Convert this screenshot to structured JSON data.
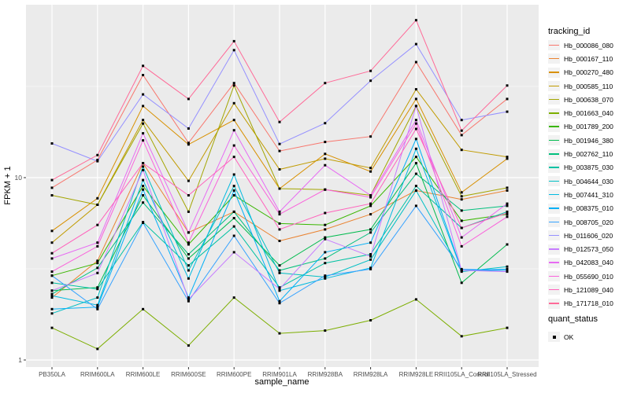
{
  "colors": {
    "panel_bg": "#EBEBEB",
    "grid": "#FFFFFF",
    "tick_mark": "#333333",
    "tick_label": "#4D4D4D",
    "axis_title": "#000000",
    "point": "#000000",
    "legend_key_bg": "#F2F2F2"
  },
  "legend": {
    "tracking_title": "tracking_id",
    "quant_title": "quant_status",
    "quant_items": [
      {
        "label": "OK",
        "point_color": "#000000"
      }
    ]
  },
  "chart_data": {
    "type": "line",
    "title": "",
    "xlabel": "sample_name",
    "ylabel": "FPKM + 1",
    "y_scale": "log10",
    "ylim": [
      0.91,
      89
    ],
    "y_ticks": [
      {
        "value": 1,
        "label": "1"
      },
      {
        "value": 10,
        "label": "10"
      }
    ],
    "y_minor_breaks": [
      3.162,
      31.62
    ],
    "grid": "on",
    "legend_position": "right",
    "point_shape": "square",
    "categories": [
      "PB350LA",
      "RRIM600LA",
      "RRIM600LE",
      "RRIM600SE",
      "RRIM600PE",
      "RRIM901LA",
      "RRIM928BA",
      "RRIM928LA",
      "RRIM928LE",
      "RRII105LA_Control",
      "RRII105LA_Stressed"
    ],
    "series": [
      {
        "name": "Hb_000086_080",
        "color": "#F8766D",
        "values": [
          8.8,
          12.5,
          36.5,
          15.5,
          33,
          14,
          15.7,
          16.8,
          43,
          17.1,
          27
        ]
      },
      {
        "name": "Hb_000167_110",
        "color": "#EA8331",
        "values": [
          2.2,
          3.5,
          12,
          5.0,
          6.5,
          4.5,
          5.2,
          6.3,
          8.5,
          7.6,
          8.5
        ]
      },
      {
        "name": "Hb_000270_480",
        "color": "#D89000",
        "values": [
          5.1,
          7.7,
          24.7,
          15.2,
          20.7,
          8.7,
          13.5,
          10.8,
          27,
          8.3,
          12.7
        ]
      },
      {
        "name": "Hb_000585_110",
        "color": "#C09B00",
        "values": [
          4.4,
          7.1,
          20.7,
          9.6,
          25.6,
          11.1,
          12.7,
          11.3,
          30.5,
          14.2,
          13
        ]
      },
      {
        "name": "Hb_000638_070",
        "color": "#A3A500",
        "values": [
          8.0,
          7.1,
          19.8,
          6.5,
          32,
          8.7,
          8.6,
          8.0,
          24.7,
          7.9,
          8.8
        ]
      },
      {
        "name": "Hb_001663_040",
        "color": "#7CAE00",
        "values": [
          1.5,
          1.15,
          1.9,
          1.2,
          2.2,
          1.4,
          1.45,
          1.65,
          2.15,
          1.35,
          1.5
        ]
      },
      {
        "name": "Hb_001789_200",
        "color": "#39B600",
        "values": [
          2.9,
          3.4,
          9.0,
          4.3,
          8.0,
          5.6,
          5.5,
          7.0,
          13,
          5.8,
          6.3
        ]
      },
      {
        "name": "Hb_001946_380",
        "color": "#00BB4E",
        "values": [
          2.4,
          2.5,
          8.0,
          3.6,
          6.0,
          3.3,
          4.7,
          5.2,
          12,
          2.65,
          4.3
        ]
      },
      {
        "name": "Hb_002762_110",
        "color": "#00BF7D",
        "values": [
          2.3,
          3.2,
          7.3,
          3.8,
          6.5,
          3.1,
          3.6,
          5.0,
          10.5,
          6.6,
          7.0
        ]
      },
      {
        "name": "Hb_003875_030",
        "color": "#00C1A3",
        "values": [
          2.65,
          2.45,
          5.7,
          3.3,
          5.4,
          2.5,
          3.4,
          3.8,
          9.0,
          5.3,
          6.5
        ]
      },
      {
        "name": "Hb_004644_030",
        "color": "#00BFC4",
        "values": [
          1.8,
          2.2,
          11.5,
          3.1,
          9.0,
          3.0,
          2.85,
          3.55,
          8.5,
          3.05,
          3.25
        ]
      },
      {
        "name": "Hb_007441_310",
        "color": "#00BAE0",
        "values": [
          2.25,
          2.0,
          9.7,
          2.8,
          10.4,
          2.4,
          2.8,
          3.2,
          14.4,
          3.1,
          3.1
        ]
      },
      {
        "name": "Hb_008375_010",
        "color": "#00B0F6",
        "values": [
          1.9,
          1.95,
          8.6,
          2.2,
          8.5,
          2.1,
          3.9,
          4.4,
          16.3,
          3.1,
          3.15
        ]
      },
      {
        "name": "Hb_008705_020",
        "color": "#35A2FF",
        "values": [
          2.9,
          1.9,
          5.65,
          2.1,
          4.8,
          2.05,
          2.9,
          3.15,
          7.0,
          3.15,
          3.1
        ]
      },
      {
        "name": "Hb_011606_020",
        "color": "#9590FF",
        "values": [
          15.4,
          12.3,
          28.6,
          18.6,
          50,
          15.3,
          19.9,
          34,
          54,
          20.7,
          23
        ]
      },
      {
        "name": "Hb_012573_050",
        "color": "#C77CFF",
        "values": [
          2.4,
          3.0,
          11.0,
          2.15,
          3.9,
          2.45,
          4.6,
          3.7,
          24.7,
          3.1,
          3.05
        ]
      },
      {
        "name": "Hb_042083_040",
        "color": "#E76BF3",
        "values": [
          3.6,
          4.4,
          17.5,
          5.0,
          18.2,
          6.5,
          11.7,
          8.0,
          20.7,
          4.7,
          7.2
        ]
      },
      {
        "name": "Hb_055690_010",
        "color": "#FA62DB",
        "values": [
          3.05,
          4.2,
          16.0,
          4.4,
          15.0,
          6.3,
          8.6,
          7.8,
          19.8,
          4.2,
          6.1
        ]
      },
      {
        "name": "Hb_121089_040",
        "color": "#FF62BC",
        "values": [
          3.85,
          5.5,
          12.0,
          8.0,
          13.0,
          5.2,
          6.4,
          7.2,
          18.5,
          5.3,
          6.4
        ]
      },
      {
        "name": "Hb_171718_010",
        "color": "#FF6A98",
        "values": [
          9.7,
          13.3,
          41,
          27,
          56,
          20.2,
          33,
          38.5,
          73,
          18.1,
          32
        ]
      }
    ]
  }
}
